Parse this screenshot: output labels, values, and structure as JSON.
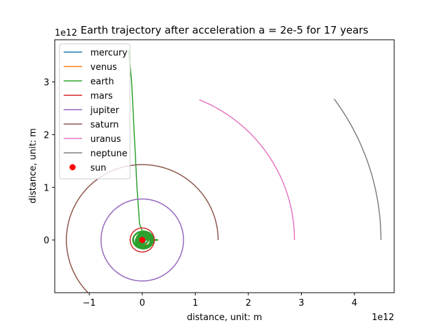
{
  "chart_data": {
    "type": "line",
    "title": "Earth trajectory after acceleration a = 2e-5 for 17 years",
    "xlabel": "distance, unit: m",
    "ylabel": "distance, unit: m",
    "x_offset_label": "1e12",
    "y_offset_label": "1e12",
    "xlim": [
      -1.65,
      4.75
    ],
    "ylim": [
      -1.0,
      3.8
    ],
    "x_ticks": [
      -1,
      0,
      1,
      2,
      3,
      4
    ],
    "y_ticks": [
      0,
      1,
      2,
      3
    ],
    "grid": false,
    "legend_position": "top-left",
    "sun": {
      "name": "sun",
      "x": 0,
      "y": 0,
      "color": "#ff0000"
    },
    "series": [
      {
        "name": "mercury",
        "color": "#1f77b4",
        "kind": "orbit",
        "radius": 0.058,
        "theta_start": 0,
        "theta_end": 360
      },
      {
        "name": "venus",
        "color": "#ff7f0e",
        "kind": "orbit",
        "radius": 0.108,
        "theta_start": 0,
        "theta_end": 360
      },
      {
        "name": "earth",
        "color": "#2ca02c",
        "kind": "trajectory",
        "points": [
          [
            0.0,
            0.0
          ],
          [
            0.18,
            0.02
          ],
          [
            0.3,
            0.0
          ],
          [
            0.18,
            -0.02
          ],
          [
            0.05,
            0.04
          ],
          [
            -0.05,
            0.3
          ],
          [
            -0.1,
            1.0
          ],
          [
            -0.15,
            2.0
          ],
          [
            -0.2,
            3.0
          ],
          [
            -0.26,
            3.6
          ]
        ]
      },
      {
        "name": "mars",
        "color": "#d62728",
        "kind": "orbit",
        "radius": 0.228,
        "theta_start": 0,
        "theta_end": 360
      },
      {
        "name": "jupiter",
        "color": "#9467bd",
        "kind": "orbit",
        "radius": 0.778,
        "theta_start": 0,
        "theta_end": 360
      },
      {
        "name": "saturn",
        "color": "#8c564b",
        "kind": "orbit",
        "radius": 1.43,
        "theta_start": 0,
        "theta_end": 238
      },
      {
        "name": "uranus",
        "color": "#e377c2",
        "kind": "orbit",
        "radius": 2.87,
        "theta_start": 0,
        "theta_end": 68
      },
      {
        "name": "neptune",
        "color": "#7f7f7f",
        "kind": "orbit",
        "radius": 4.5,
        "theta_start": 0,
        "theta_end": 36.5
      }
    ],
    "earth_scribble": {
      "center": [
        0.02,
        0.0
      ],
      "radius_min": 0.08,
      "radius_max": 0.2,
      "loops": 17
    }
  }
}
